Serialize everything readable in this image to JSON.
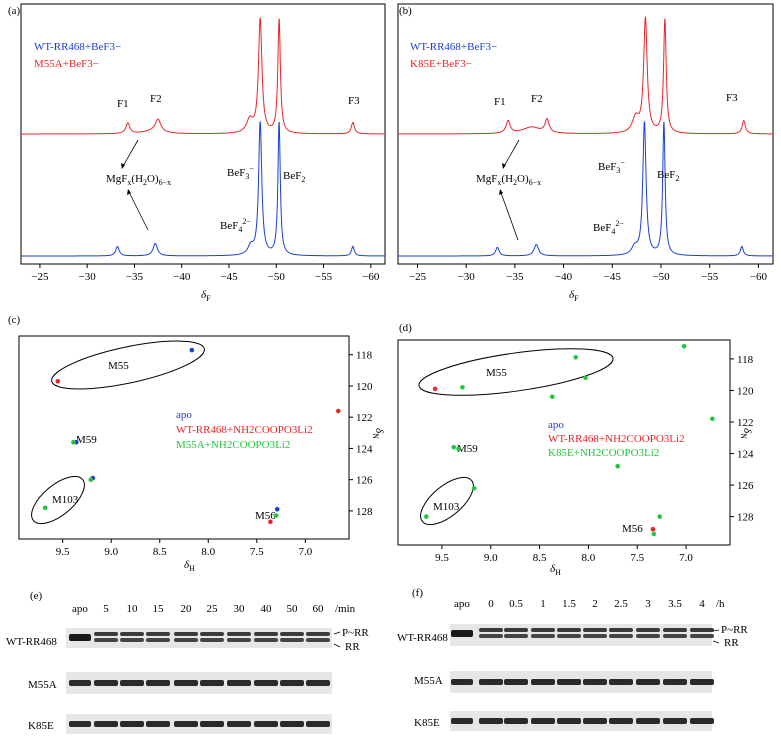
{
  "figure": {
    "panel_letters": [
      "(a)",
      "(b)",
      "(c)",
      "(d)",
      "(e)",
      "(f)"
    ]
  },
  "colors": {
    "blue": "#1a3fd6",
    "red": "#e8262a",
    "green": "#21c63c",
    "black": "#000000"
  },
  "chart_data": [
    {
      "panel": "(a)",
      "type": "line",
      "xlabel": "δF",
      "xlim": [
        -23,
        -61.5
      ],
      "x_ticks": [
        -25,
        -30,
        -35,
        -40,
        -45,
        -50,
        -55,
        -60
      ],
      "x_tick_labels": [
        "−25",
        "−30",
        "−35",
        "−40",
        "−45",
        "−50",
        "−55",
        "−60"
      ],
      "legend": [
        "WT-RR468+BeF3−",
        "M55A+BeF3−"
      ],
      "series": [
        {
          "name": "M55A+BeF3−",
          "color": "red",
          "baseline": 0.58,
          "peaks": [
            {
              "x": -34.3,
              "h": 0.11,
              "w": 0.25
            },
            {
              "x": -37.5,
              "h": 0.13,
              "w": 0.35
            },
            {
              "x": -37.0,
              "h": 0.03,
              "w": 1.2
            },
            {
              "x": -47.2,
              "h": 0.14,
              "w": 0.4
            },
            {
              "x": -48.3,
              "h": 1.2,
              "w": 0.22
            },
            {
              "x": -50.3,
              "h": 1.2,
              "w": 0.16
            },
            {
              "x": -58.1,
              "h": 0.12,
              "w": 0.2
            }
          ]
        },
        {
          "name": "WT-RR468+BeF3−",
          "color": "blue",
          "baseline": 0.0,
          "peaks": [
            {
              "x": -33.2,
              "h": 0.1,
              "w": 0.22
            },
            {
              "x": -37.2,
              "h": 0.13,
              "w": 0.28
            },
            {
              "x": -47.3,
              "h": 0.09,
              "w": 0.35
            },
            {
              "x": -48.3,
              "h": 1.4,
              "w": 0.2
            },
            {
              "x": -50.3,
              "h": 1.4,
              "w": 0.15
            },
            {
              "x": -58.1,
              "h": 0.1,
              "w": 0.18
            }
          ]
        }
      ],
      "annotations": {
        "F1": "F1",
        "F2": "F2",
        "F3": "F3",
        "mg_base": "MgF",
        "mg_x": "x",
        "mg_mid": "(H",
        "mg_2": "2",
        "mg_end": "O)",
        "mg_sub": "6−x",
        "bef3": "BeF",
        "bef3_sub": "3",
        "bef3_sup": "−",
        "bef2": "BeF",
        "bef2_sub": "2",
        "bef4": "BeF",
        "bef4_sub": "4",
        "bef4_sup": "2−"
      }
    },
    {
      "panel": "(b)",
      "type": "line",
      "xlabel": "δF",
      "xlim": [
        -23,
        -61.5
      ],
      "x_ticks": [
        -25,
        -30,
        -35,
        -40,
        -45,
        -50,
        -55,
        -60
      ],
      "x_tick_labels": [
        "−25",
        "−30",
        "−35",
        "−40",
        "−45",
        "−50",
        "−55",
        "−60"
      ],
      "legend": [
        "WT-RR468+BeF3−",
        "K85E+BeF3−"
      ],
      "series": [
        {
          "name": "K85E+BeF3−",
          "color": "red",
          "baseline": 0.58,
          "peaks": [
            {
              "x": -34.3,
              "h": 0.13,
              "w": 0.25
            },
            {
              "x": -36.7,
              "h": 0.07,
              "w": 1.1
            },
            {
              "x": -38.3,
              "h": 0.14,
              "w": 0.25
            },
            {
              "x": -47.4,
              "h": 0.16,
              "w": 0.4
            },
            {
              "x": -48.4,
              "h": 1.2,
              "w": 0.22
            },
            {
              "x": -50.4,
              "h": 1.2,
              "w": 0.16
            },
            {
              "x": -58.5,
              "h": 0.14,
              "w": 0.2
            }
          ]
        },
        {
          "name": "WT-RR468+BeF3−",
          "color": "blue",
          "baseline": 0.0,
          "peaks": [
            {
              "x": -33.2,
              "h": 0.09,
              "w": 0.22
            },
            {
              "x": -37.2,
              "h": 0.12,
              "w": 0.28
            },
            {
              "x": -47.3,
              "h": 0.08,
              "w": 0.35
            },
            {
              "x": -48.3,
              "h": 1.4,
              "w": 0.2
            },
            {
              "x": -50.3,
              "h": 1.4,
              "w": 0.15
            },
            {
              "x": -58.3,
              "h": 0.1,
              "w": 0.18
            }
          ]
        }
      ],
      "annotations": {
        "F1": "F1",
        "F2": "F2",
        "F3": "F3",
        "mg_base": "MgF",
        "mg_x": "x",
        "mg_mid": "(H",
        "mg_2": "2",
        "mg_end": "O)",
        "mg_sub": "6−x",
        "bef3": "BeF",
        "bef3_sub": "3",
        "bef3_sup": "−",
        "bef2": "BeF",
        "bef2_sub": "2",
        "bef4": "BeF",
        "bef4_sub": "4",
        "bef4_sup": "2−"
      }
    },
    {
      "panel": "(c)",
      "type": "scatter",
      "xlabel": "δH",
      "ylabel": "δN",
      "xlim": [
        9.95,
        6.55
      ],
      "ylim": [
        116.8,
        129.8
      ],
      "x_ticks": [
        9.5,
        9.0,
        8.5,
        8.0,
        7.5,
        7.0
      ],
      "x_tick_labels": [
        "9.5",
        "9.0",
        "8.5",
        "8.0",
        "7.5",
        "7.0"
      ],
      "y_ticks": [
        118,
        120,
        122,
        124,
        126,
        128
      ],
      "legend": [
        {
          "text": "apo",
          "color": "blue"
        },
        {
          "text": "WT-RR468+NH2COOPO3Li2",
          "color": "red"
        },
        {
          "text": "M55A+NH2COOPO3Li2",
          "color": "green"
        }
      ],
      "points": [
        {
          "x": 8.17,
          "y": 117.7,
          "color": "blue"
        },
        {
          "x": 9.55,
          "y": 119.7,
          "color": "red"
        },
        {
          "x": 9.36,
          "y": 123.6,
          "color": "blue"
        },
        {
          "x": 9.39,
          "y": 123.6,
          "color": "green"
        },
        {
          "x": 9.19,
          "y": 125.9,
          "color": "blue"
        },
        {
          "x": 9.21,
          "y": 126.0,
          "color": "green"
        },
        {
          "x": 9.68,
          "y": 127.8,
          "color": "green"
        },
        {
          "x": 7.29,
          "y": 127.9,
          "color": "blue"
        },
        {
          "x": 7.3,
          "y": 128.3,
          "color": "green"
        },
        {
          "x": 7.36,
          "y": 128.7,
          "color": "red"
        },
        {
          "x": 6.66,
          "y": 121.6,
          "color": "red"
        }
      ],
      "residue_labels": [
        "M55",
        "M59",
        "M103",
        "M56"
      ]
    },
    {
      "panel": "(d)",
      "type": "scatter",
      "xlabel": "δH",
      "ylabel": "δN",
      "xlim": [
        9.95,
        6.55
      ],
      "ylim": [
        116.8,
        129.8
      ],
      "x_ticks": [
        9.5,
        9.0,
        8.5,
        8.0,
        7.5,
        7.0
      ],
      "x_tick_labels": [
        "9.5",
        "9.0",
        "8.5",
        "8.0",
        "7.5",
        "7.0"
      ],
      "y_ticks": [
        118,
        120,
        122,
        124,
        126,
        128
      ],
      "legend": [
        {
          "text": "apo",
          "color": "blue"
        },
        {
          "text": "WT-RR468+NH2COOPO3Li2",
          "color": "red"
        },
        {
          "text": "K85E+NH2COOPO3Li2",
          "color": "green"
        }
      ],
      "points": [
        {
          "x": 8.13,
          "y": 117.9,
          "color": "green"
        },
        {
          "x": 9.57,
          "y": 119.9,
          "color": "red"
        },
        {
          "x": 9.29,
          "y": 119.8,
          "color": "green"
        },
        {
          "x": 8.37,
          "y": 120.4,
          "color": "green"
        },
        {
          "x": 9.38,
          "y": 123.6,
          "color": "green"
        },
        {
          "x": 9.33,
          "y": 123.7,
          "color": "green"
        },
        {
          "x": 9.17,
          "y": 126.2,
          "color": "green"
        },
        {
          "x": 9.66,
          "y": 128.0,
          "color": "green"
        },
        {
          "x": 7.27,
          "y": 128.0,
          "color": "green"
        },
        {
          "x": 7.34,
          "y": 128.8,
          "color": "red"
        },
        {
          "x": 7.33,
          "y": 129.1,
          "color": "green"
        },
        {
          "x": 7.02,
          "y": 117.2,
          "color": "green"
        },
        {
          "x": 8.03,
          "y": 119.2,
          "color": "green"
        },
        {
          "x": 6.73,
          "y": 121.8,
          "color": "green"
        },
        {
          "x": 7.7,
          "y": 124.8,
          "color": "green"
        }
      ],
      "residue_labels": [
        "M55",
        "M59",
        "M103",
        "M56"
      ]
    }
  ],
  "gels": [
    {
      "panel": "(e)",
      "lanes": [
        "apo",
        "5",
        "10",
        "15",
        "20",
        "25",
        "30",
        "40",
        "50",
        "60"
      ],
      "unit": "/min",
      "rows": [
        "WT-RR468",
        "M55A",
        "K85E"
      ],
      "band_labels": [
        "P~RR",
        "RR"
      ]
    },
    {
      "panel": "(f)",
      "lanes": [
        "apo",
        "0",
        "0.5",
        "1",
        "1.5",
        "2",
        "2.5",
        "3",
        "3.5",
        "4"
      ],
      "unit": "/h",
      "rows": [
        "WT-RR468",
        "M55A",
        "K85E"
      ],
      "band_labels": [
        "P~RR",
        "RR"
      ]
    }
  ]
}
